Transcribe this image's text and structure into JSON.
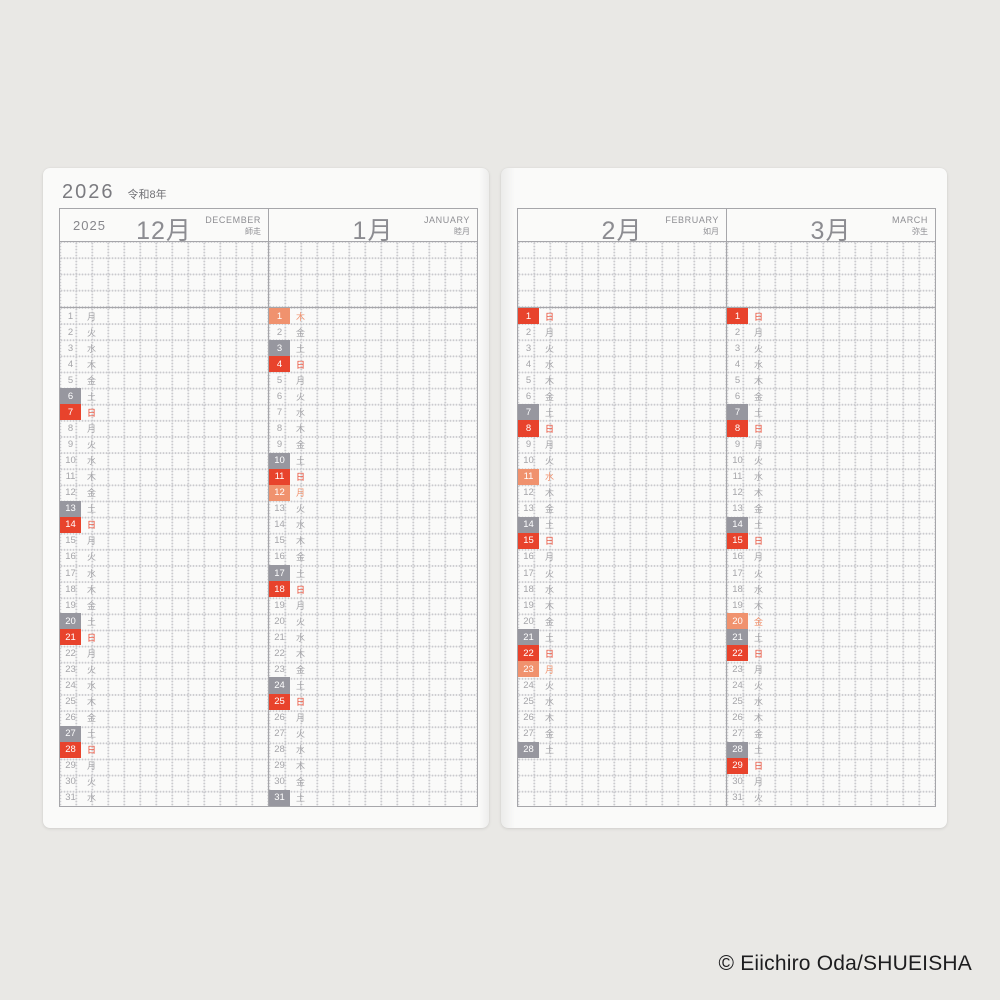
{
  "heading": {
    "year": "2026",
    "era": "令和8年"
  },
  "copyright": "© Eiichiro Oda/SHUEISHA",
  "colors": {
    "sunday": "#e8432c",
    "saturday": "#97979f",
    "holiday": "#f0926e",
    "line": "#a6a6aa",
    "griddot": "#c9c9cd",
    "daytext": "#a5a5a9",
    "headertext": "#8c8c91",
    "pagebg": "#fafaf9",
    "canvasbg": "#e9e8e5"
  },
  "pages": [
    {
      "months": [
        {
          "year_label": "2025",
          "month_big": "12月",
          "name_en": "DECEMBER",
          "name_jp": "師走",
          "days": [
            [
              1,
              "月",
              ""
            ],
            [
              2,
              "火",
              ""
            ],
            [
              3,
              "水",
              ""
            ],
            [
              4,
              "木",
              ""
            ],
            [
              5,
              "金",
              ""
            ],
            [
              6,
              "土",
              "sat"
            ],
            [
              7,
              "日",
              "sun"
            ],
            [
              8,
              "月",
              ""
            ],
            [
              9,
              "火",
              ""
            ],
            [
              10,
              "水",
              ""
            ],
            [
              11,
              "木",
              ""
            ],
            [
              12,
              "金",
              ""
            ],
            [
              13,
              "土",
              "sat"
            ],
            [
              14,
              "日",
              "sun"
            ],
            [
              15,
              "月",
              ""
            ],
            [
              16,
              "火",
              ""
            ],
            [
              17,
              "水",
              ""
            ],
            [
              18,
              "木",
              ""
            ],
            [
              19,
              "金",
              ""
            ],
            [
              20,
              "土",
              "sat"
            ],
            [
              21,
              "日",
              "sun"
            ],
            [
              22,
              "月",
              ""
            ],
            [
              23,
              "火",
              ""
            ],
            [
              24,
              "水",
              ""
            ],
            [
              25,
              "木",
              ""
            ],
            [
              26,
              "金",
              ""
            ],
            [
              27,
              "土",
              "sat"
            ],
            [
              28,
              "日",
              "sun"
            ],
            [
              29,
              "月",
              ""
            ],
            [
              30,
              "火",
              ""
            ],
            [
              31,
              "水",
              ""
            ]
          ]
        },
        {
          "year_label": "",
          "month_big": "1月",
          "name_en": "JANUARY",
          "name_jp": "睦月",
          "days": [
            [
              1,
              "木",
              "hol"
            ],
            [
              2,
              "金",
              ""
            ],
            [
              3,
              "土",
              "sat"
            ],
            [
              4,
              "日",
              "sun"
            ],
            [
              5,
              "月",
              ""
            ],
            [
              6,
              "火",
              ""
            ],
            [
              7,
              "水",
              ""
            ],
            [
              8,
              "木",
              ""
            ],
            [
              9,
              "金",
              ""
            ],
            [
              10,
              "土",
              "sat"
            ],
            [
              11,
              "日",
              "sun"
            ],
            [
              12,
              "月",
              "hol"
            ],
            [
              13,
              "火",
              ""
            ],
            [
              14,
              "水",
              ""
            ],
            [
              15,
              "木",
              ""
            ],
            [
              16,
              "金",
              ""
            ],
            [
              17,
              "土",
              "sat"
            ],
            [
              18,
              "日",
              "sun"
            ],
            [
              19,
              "月",
              ""
            ],
            [
              20,
              "火",
              ""
            ],
            [
              21,
              "水",
              ""
            ],
            [
              22,
              "木",
              ""
            ],
            [
              23,
              "金",
              ""
            ],
            [
              24,
              "土",
              "sat"
            ],
            [
              25,
              "日",
              "sun"
            ],
            [
              26,
              "月",
              ""
            ],
            [
              27,
              "火",
              ""
            ],
            [
              28,
              "水",
              ""
            ],
            [
              29,
              "木",
              ""
            ],
            [
              30,
              "金",
              ""
            ],
            [
              31,
              "土",
              "sat"
            ]
          ]
        }
      ]
    },
    {
      "months": [
        {
          "year_label": "",
          "month_big": "2月",
          "name_en": "FEBRUARY",
          "name_jp": "如月",
          "days": [
            [
              1,
              "日",
              "sun"
            ],
            [
              2,
              "月",
              ""
            ],
            [
              3,
              "火",
              ""
            ],
            [
              4,
              "水",
              ""
            ],
            [
              5,
              "木",
              ""
            ],
            [
              6,
              "金",
              ""
            ],
            [
              7,
              "土",
              "sat"
            ],
            [
              8,
              "日",
              "sun"
            ],
            [
              9,
              "月",
              ""
            ],
            [
              10,
              "火",
              ""
            ],
            [
              11,
              "水",
              "hol"
            ],
            [
              12,
              "木",
              ""
            ],
            [
              13,
              "金",
              ""
            ],
            [
              14,
              "土",
              "sat"
            ],
            [
              15,
              "日",
              "sun"
            ],
            [
              16,
              "月",
              ""
            ],
            [
              17,
              "火",
              ""
            ],
            [
              18,
              "水",
              ""
            ],
            [
              19,
              "木",
              ""
            ],
            [
              20,
              "金",
              ""
            ],
            [
              21,
              "土",
              "sat"
            ],
            [
              22,
              "日",
              "sun"
            ],
            [
              23,
              "月",
              "hol"
            ],
            [
              24,
              "火",
              ""
            ],
            [
              25,
              "水",
              ""
            ],
            [
              26,
              "木",
              ""
            ],
            [
              27,
              "金",
              ""
            ],
            [
              28,
              "土",
              "sat"
            ]
          ]
        },
        {
          "year_label": "",
          "month_big": "3月",
          "name_en": "MARCH",
          "name_jp": "弥生",
          "days": [
            [
              1,
              "日",
              "sun"
            ],
            [
              2,
              "月",
              ""
            ],
            [
              3,
              "火",
              ""
            ],
            [
              4,
              "水",
              ""
            ],
            [
              5,
              "木",
              ""
            ],
            [
              6,
              "金",
              ""
            ],
            [
              7,
              "土",
              "sat"
            ],
            [
              8,
              "日",
              "sun"
            ],
            [
              9,
              "月",
              ""
            ],
            [
              10,
              "火",
              ""
            ],
            [
              11,
              "水",
              ""
            ],
            [
              12,
              "木",
              ""
            ],
            [
              13,
              "金",
              ""
            ],
            [
              14,
              "土",
              "sat"
            ],
            [
              15,
              "日",
              "sun"
            ],
            [
              16,
              "月",
              ""
            ],
            [
              17,
              "火",
              ""
            ],
            [
              18,
              "水",
              ""
            ],
            [
              19,
              "木",
              ""
            ],
            [
              20,
              "金",
              "hol"
            ],
            [
              21,
              "土",
              "sat"
            ],
            [
              22,
              "日",
              "sun"
            ],
            [
              23,
              "月",
              ""
            ],
            [
              24,
              "火",
              ""
            ],
            [
              25,
              "水",
              ""
            ],
            [
              26,
              "木",
              ""
            ],
            [
              27,
              "金",
              ""
            ],
            [
              28,
              "土",
              "sat"
            ],
            [
              29,
              "日",
              "sun"
            ],
            [
              30,
              "月",
              ""
            ],
            [
              31,
              "火",
              ""
            ]
          ]
        }
      ]
    }
  ]
}
